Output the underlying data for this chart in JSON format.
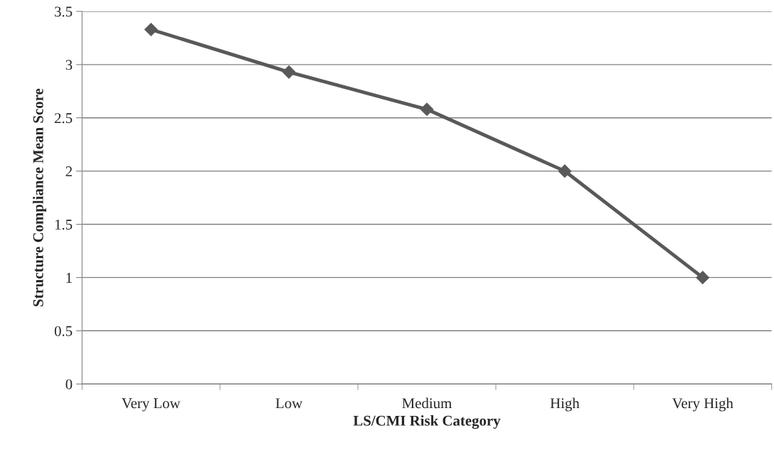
{
  "chart_data": {
    "type": "line",
    "xlabel": "LS/CMI Risk Category",
    "ylabel": "Structure Compliance Mean Score",
    "categories": [
      "Very Low",
      "Low",
      "Medium",
      "High",
      "Very High"
    ],
    "series": [
      {
        "color": "#595959",
        "values": [
          3.33,
          2.93,
          2.58,
          2.0,
          1.0
        ]
      }
    ],
    "ylim": [
      0,
      3.5
    ],
    "yticks": [
      0,
      0.5,
      1,
      1.5,
      2,
      2.5,
      3,
      3.5
    ],
    "grid": "y",
    "marker": "diamond",
    "line_style": "solid",
    "legend": false
  }
}
